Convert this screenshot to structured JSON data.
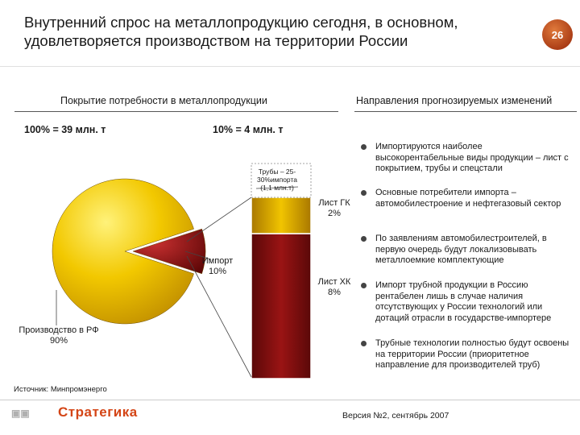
{
  "header": {
    "title_line1": "Внутренний спрос на металлопродукцию сегодня, в основном,",
    "title_line2": "удовлетворяется производством на территории России",
    "page_number": "26"
  },
  "left_panel": {
    "heading": "Покрытие потребности в металлопродукции",
    "total_label": "100% = 39 млн. т",
    "import_total_label": "10% = 4 млн. т"
  },
  "right_panel": {
    "heading": "Направления прогнозируемых изменений",
    "bullets": [
      "Импортируются наиболее высокорентабельные виды продукции – лист с покрытием, трубы и спецстали",
      "Основные потребители импорта – автомобилестроение и нефтегазовый сектор",
      "По заявлениям автомобилестроителей, в первую очередь будут локализовывать металлоемкие комплектующие",
      "Импорт трубной продукции в Россию рентабелен лишь в случае наличия отсутствующих у России технологий или дотаций отрасли в государстве-импортере",
      "Трубные технологии полностью будут освоены на территории России (приоритетное направление для производителей труб)"
    ]
  },
  "chart_data": [
    {
      "type": "pie",
      "title": "100% = 39 млн. т",
      "slices": [
        {
          "label_line1": "Производство в РФ",
          "label_line2": "90%",
          "value": 90,
          "color": "#e5b800"
        },
        {
          "label_line1": "Импорт",
          "label_line2": "10%",
          "value": 10,
          "color": "#8a1010"
        }
      ]
    },
    {
      "type": "bar",
      "stacked": true,
      "title": "10% = 4 млн. т",
      "segments": [
        {
          "label_line1": "Лист ХК",
          "label_line2": "8%",
          "value": 8,
          "color": "#8a1010"
        },
        {
          "label_line1": "Лист ГК",
          "label_line2": "2%",
          "value": 2,
          "color": "#d9a400"
        }
      ],
      "callout_line1": "Трубы – 25-",
      "callout_line2": "30%импорта",
      "callout_line3": "(1,1 млн.т)"
    }
  ],
  "footer": {
    "source": "Источник: Минпромэнерго",
    "logo_text": "Стратегика",
    "version": "Версия №2, сентябрь 2007"
  },
  "colors": {
    "accent": "#d44516",
    "production": "#e5b800",
    "import": "#8a1010"
  }
}
